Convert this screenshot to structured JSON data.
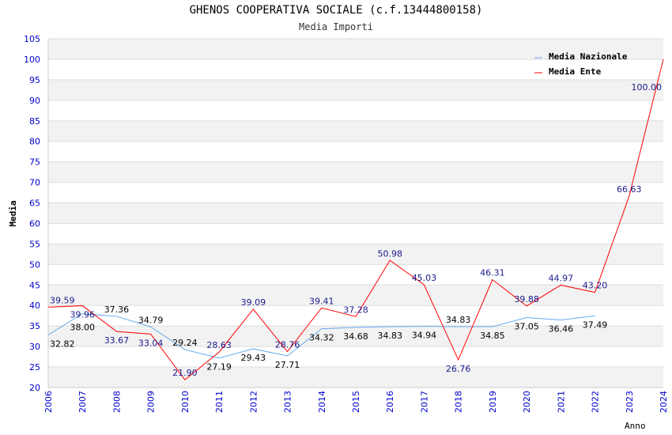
{
  "chart_data": {
    "type": "line",
    "title": "GHENOS COOPERATIVA SOCIALE (c.f.13444800158)",
    "subtitle": "Media Importi",
    "xlabel": "Anno",
    "ylabel": "Media",
    "ylim": [
      20,
      105
    ],
    "ytick_step": 5,
    "x": [
      "2006",
      "2007",
      "2008",
      "2009",
      "2010",
      "2011",
      "2012",
      "2013",
      "2014",
      "2015",
      "2016",
      "2017",
      "2018",
      "2019",
      "2020",
      "2021",
      "2022",
      "2023",
      "2024"
    ],
    "legend_position": "top-right",
    "series": [
      {
        "name": "Media Nazionale",
        "color": "#66aaee",
        "label_color": "#000000",
        "values": [
          32.82,
          38.0,
          37.36,
          34.79,
          29.24,
          27.19,
          29.43,
          27.71,
          34.32,
          34.68,
          34.83,
          34.94,
          34.83,
          34.85,
          37.05,
          36.46,
          37.49,
          null,
          null
        ]
      },
      {
        "name": "Media Ente",
        "color": "#ff0000",
        "label_color": "#1a1a8c",
        "values": [
          39.59,
          39.96,
          33.67,
          33.04,
          21.9,
          28.63,
          39.09,
          28.76,
          39.41,
          37.28,
          50.98,
          45.03,
          26.76,
          46.31,
          39.88,
          44.97,
          43.2,
          66.63,
          100.0
        ]
      }
    ]
  }
}
